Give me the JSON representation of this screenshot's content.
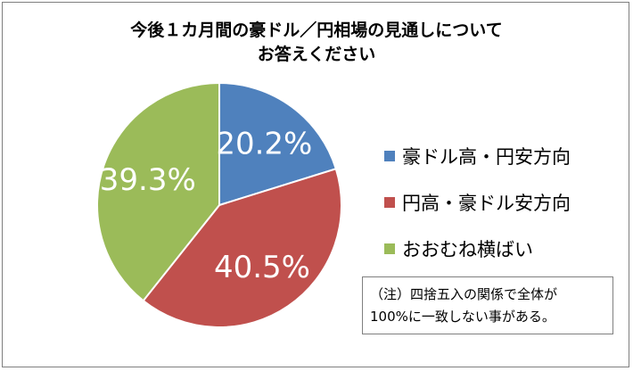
{
  "chart_data": {
    "type": "pie",
    "title_lines": [
      "今後１カ月間の豪ドル／円相場の見通しについて",
      "お答えください"
    ],
    "categories": [
      "豪ドル高・円安方向",
      "円高・豪ドル安方向",
      "おおむね横ばい"
    ],
    "values": [
      20.2,
      40.5,
      39.3
    ],
    "value_labels": [
      "20.2%",
      "40.5%",
      "39.3%"
    ],
    "colors": [
      "#4f81bd",
      "#c0504d",
      "#9bbb59"
    ],
    "start": "12 o'clock",
    "direction": "clockwise",
    "legend": "right"
  },
  "note": {
    "lines": [
      "（注）四捨五入の関係で全体が",
      "100%に一致しない事がある。"
    ]
  }
}
